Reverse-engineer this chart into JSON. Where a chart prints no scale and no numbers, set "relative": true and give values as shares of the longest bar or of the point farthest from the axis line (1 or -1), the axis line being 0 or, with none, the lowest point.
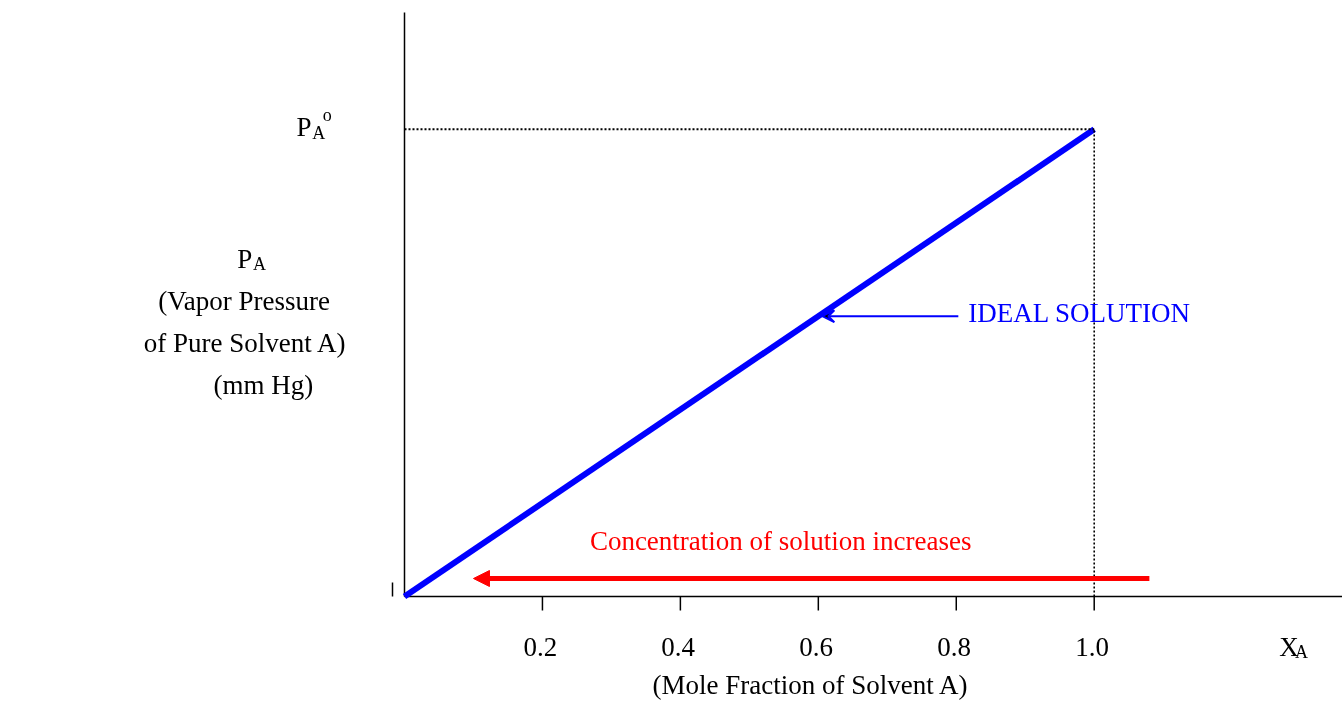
{
  "chart_data": {
    "type": "line",
    "relative": true,
    "x": [
      0,
      1.0
    ],
    "xlim": [
      0,
      1.36
    ],
    "xticks": [
      0.2,
      0.4,
      0.6,
      0.8,
      {
        "value": 1.0,
        "label": "1.0"
      }
    ],
    "xlabel": "(Mole Fraction of Solvent A)",
    "ylabel": "P$_{A}$\n(Vapor Pressure\nof Pure Solvent A)\n(mm Hg)",
    "series": [
      {
        "color": "#0000ff",
        "values": [
          0,
          1
        ]
      }
    ],
    "ref_lines": [
      {
        "axis": "y",
        "value": 1,
        "label": "P$_{A}$$^{o}$",
        "line_style": "dotted"
      },
      {
        "axis": "x",
        "value": 1.0,
        "line_style": "dotted"
      }
    ],
    "annotations": [
      {
        "text": "IDEAL SOLUTION",
        "x": 0.6,
        "y": 0.6
      },
      "Concentration of solution increases",
      "X$_{A}$"
    ],
    "grid": false,
    "marker": "none",
    "line_style": "solid"
  }
}
